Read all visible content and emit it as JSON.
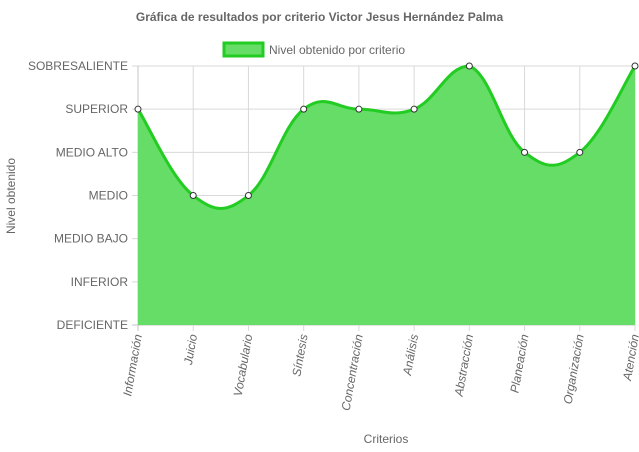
{
  "chart_data": {
    "type": "area",
    "title": "Gráfica de resultados por criterio Victor Jesus Hernández Palma",
    "xlabel": "Criterios",
    "ylabel": "Nivel obtenido",
    "y_levels": [
      "DEFICIENTE",
      "INFERIOR",
      "MEDIO BAJO",
      "MEDIO",
      "MEDIO ALTO",
      "SUPERIOR",
      "SOBRESALIENTE"
    ],
    "ylim": [
      0,
      6
    ],
    "categories": [
      "Información",
      "Juicio",
      "Vocabulario",
      "Síntesis",
      "Concentración",
      "Análisis",
      "Abstracción",
      "Planeación",
      "Organización",
      "Atención"
    ],
    "series": [
      {
        "name": "Nivel obtenido por criterio",
        "values": [
          5,
          3,
          3,
          5,
          5,
          5,
          6,
          4,
          4,
          6
        ]
      }
    ],
    "legend": "top-center",
    "grid": true,
    "colors": {
      "fill": "#66dd66",
      "stroke": "#22cc22",
      "point_fill": "#ffffff",
      "point_stroke": "#333333"
    }
  }
}
